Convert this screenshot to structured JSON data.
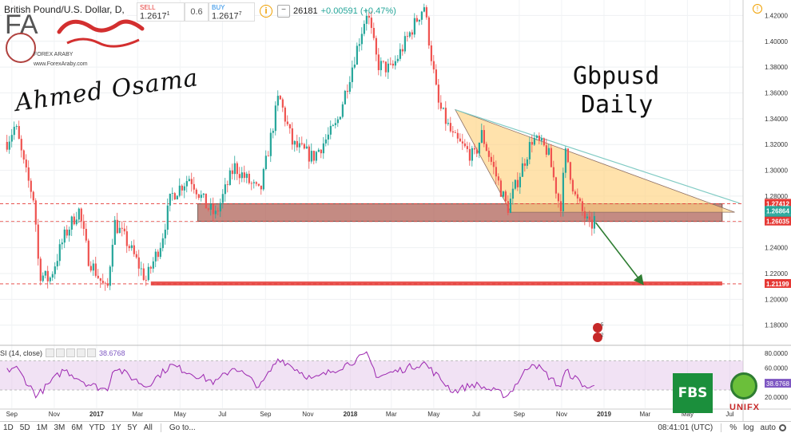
{
  "header": {
    "symbol": "British Pound/U.S. Dollar, D,",
    "sell_label": "SELL",
    "sell_price": "1.2617",
    "sell_sup": "1",
    "spread": "0.6",
    "buy_label": "BUY",
    "buy_price": "1.2617",
    "buy_sup": "7",
    "info_icon": "info-icon",
    "minus_icon": "minus-icon",
    "quote_price": "26181",
    "quote_change": "+0.00591 (+0.47%)"
  },
  "annotation": {
    "title_line1": "Gbpusd",
    "title_line2": "Daily",
    "signature": "Ahmed Osama",
    "logo_text": "FOREX ARABY",
    "logo_url": "www.ForexAraby.com",
    "fbs_logo": "FBS",
    "unifx_logo": "UNIFX"
  },
  "rsi": {
    "label": "SI (14, close)",
    "value": "38.6768",
    "ticks": [
      "80.0000",
      "60.0000",
      "40.0000",
      "20.0000"
    ]
  },
  "toolbar": {
    "ranges": [
      "1D",
      "5D",
      "1M",
      "3M",
      "6M",
      "YTD",
      "1Y",
      "5Y",
      "All"
    ],
    "goto": "Go to...",
    "time": "08:41:01 (UTC)",
    "pct": "%",
    "log": "log",
    "auto": "auto"
  },
  "colors": {
    "up": "#26a69a",
    "down": "#ef5350",
    "rsi_line": "#9c27b0",
    "rsi_band": "#e1bee7",
    "triangle_fill": "#ffd27f",
    "zone_fill": "#b0645a",
    "support_red": "#e53935",
    "trend_line": "#80cbc4",
    "arrow_green": "#2e7d32"
  },
  "chart_data": {
    "type": "candlestick",
    "title": "British Pound/U.S. Dollar, D,",
    "y_ticks": [
      "1.42000",
      "1.40000",
      "1.38000",
      "1.36000",
      "1.34000",
      "1.32000",
      "1.30000",
      "1.28000",
      "1.26000",
      "1.24000",
      "1.22000",
      "1.20000",
      "1.18000"
    ],
    "x_ticks": [
      "Sep",
      "Nov",
      "2017",
      "Mar",
      "May",
      "Jul",
      "Sep",
      "Nov",
      "2018",
      "Mar",
      "May",
      "Jul",
      "Sep",
      "Nov",
      "2019",
      "Mar",
      "May",
      "Jul"
    ],
    "ylim": [
      1.165,
      1.432
    ],
    "price_path": [
      [
        "2016-08-25",
        1.322
      ],
      [
        "2016-09-06",
        1.335
      ],
      [
        "2016-09-20",
        1.3
      ],
      [
        "2016-10-04",
        1.275
      ],
      [
        "2016-10-07",
        1.24
      ],
      [
        "2016-10-11",
        1.22
      ],
      [
        "2016-10-25",
        1.215
      ],
      [
        "2016-11-15",
        1.248
      ],
      [
        "2016-12-06",
        1.27
      ],
      [
        "2016-12-20",
        1.232
      ],
      [
        "2017-01-16",
        1.205
      ],
      [
        "2017-01-26",
        1.26
      ],
      [
        "2017-02-15",
        1.243
      ],
      [
        "2017-03-13",
        1.215
      ],
      [
        "2017-04-04",
        1.245
      ],
      [
        "2017-04-18",
        1.28
      ],
      [
        "2017-05-15",
        1.295
      ],
      [
        "2017-06-08",
        1.272
      ],
      [
        "2017-06-21",
        1.265
      ],
      [
        "2017-07-18",
        1.303
      ],
      [
        "2017-08-24",
        1.282
      ],
      [
        "2017-09-20",
        1.358
      ],
      [
        "2017-10-10",
        1.32
      ],
      [
        "2017-11-08",
        1.31
      ],
      [
        "2017-12-12",
        1.335
      ],
      [
        "2018-01-25",
        1.424
      ],
      [
        "2018-02-09",
        1.382
      ],
      [
        "2018-03-01",
        1.378
      ],
      [
        "2018-04-17",
        1.428
      ],
      [
        "2018-05-07",
        1.352
      ],
      [
        "2018-05-29",
        1.325
      ],
      [
        "2018-06-28",
        1.31
      ],
      [
        "2018-07-09",
        1.328
      ],
      [
        "2018-08-15",
        1.27
      ],
      [
        "2018-09-20",
        1.325
      ],
      [
        "2018-10-12",
        1.315
      ],
      [
        "2018-10-30",
        1.27
      ],
      [
        "2018-11-07",
        1.315
      ],
      [
        "2018-11-20",
        1.28
      ],
      [
        "2018-12-12",
        1.255
      ],
      [
        "2018-12-18",
        1.262
      ]
    ],
    "rsi_path": [
      [
        "2016-08-25",
        56
      ],
      [
        "2016-09-06",
        62
      ],
      [
        "2016-10-07",
        22
      ],
      [
        "2016-11-15",
        58
      ],
      [
        "2016-12-20",
        38
      ],
      [
        "2017-01-16",
        30
      ],
      [
        "2017-01-26",
        62
      ],
      [
        "2017-03-13",
        35
      ],
      [
        "2017-04-18",
        64
      ],
      [
        "2017-06-21",
        40
      ],
      [
        "2017-07-18",
        62
      ],
      [
        "2017-08-24",
        34
      ],
      [
        "2017-09-20",
        74
      ],
      [
        "2017-11-08",
        44
      ],
      [
        "2018-01-25",
        78
      ],
      [
        "2018-02-09",
        48
      ],
      [
        "2018-04-17",
        67
      ],
      [
        "2018-05-29",
        28
      ],
      [
        "2018-06-28",
        38
      ],
      [
        "2018-08-15",
        22
      ],
      [
        "2018-09-20",
        69
      ],
      [
        "2018-10-30",
        34
      ],
      [
        "2018-11-07",
        56
      ],
      [
        "2018-12-12",
        30
      ],
      [
        "2018-12-18",
        38.68
      ]
    ],
    "price_labels": [
      {
        "value": 1.27412,
        "text": "1.27412",
        "color": "#e53935"
      },
      {
        "value": 1.26864,
        "text": "1.26864",
        "color": "#26a69a"
      },
      {
        "value": 1.26181,
        "text": "1.26181",
        "color": "#26a69a"
      },
      {
        "value": 1.26035,
        "text": "1.26035",
        "color": "#e53935"
      },
      {
        "value": 1.21199,
        "text": "1.21199",
        "color": "#e53935"
      }
    ],
    "resistance_zone": {
      "top": 1.2741,
      "bottom": 1.2604,
      "from": "2017-05-22",
      "to": "2019-06-20"
    },
    "support_line": {
      "value": 1.212,
      "from": "2017-03-20",
      "to": "2019-06-20"
    },
    "triangle": [
      [
        "2018-06-01",
        1.347
      ],
      [
        "2018-08-20",
        1.2675
      ],
      [
        "2019-07-08",
        1.2675
      ]
    ],
    "trend_line": [
      [
        "2018-06-01",
        1.347
      ],
      [
        "2019-07-15",
        1.2745
      ]
    ],
    "projection_arrow": [
      [
        "2018-12-20",
        1.2595
      ],
      [
        "2019-02-25",
        1.2125
      ]
    ],
    "hlines": [
      {
        "value": 1.27412,
        "color": "#e53935"
      },
      {
        "value": 1.26035,
        "color": "#e53935"
      },
      {
        "value": 1.212,
        "color": "#e53935"
      }
    ],
    "grid": true
  }
}
